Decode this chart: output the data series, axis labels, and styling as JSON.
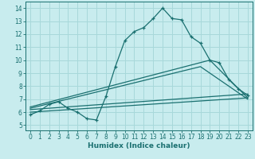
{
  "xlabel": "Humidex (Indice chaleur)",
  "ylabel": "",
  "bg_color": "#c8ecee",
  "grid_color": "#a8d8da",
  "line_color": "#1a7070",
  "xlim": [
    -0.5,
    23.5
  ],
  "ylim": [
    4.6,
    14.5
  ],
  "xticks": [
    0,
    1,
    2,
    3,
    4,
    5,
    6,
    7,
    8,
    9,
    10,
    11,
    12,
    13,
    14,
    15,
    16,
    17,
    18,
    19,
    20,
    21,
    22,
    23
  ],
  "yticks": [
    5,
    6,
    7,
    8,
    9,
    10,
    11,
    12,
    13,
    14
  ],
  "line1_x": [
    0,
    1,
    2,
    3,
    4,
    5,
    6,
    7,
    8,
    9,
    10,
    11,
    12,
    13,
    14,
    15,
    16,
    17,
    18,
    19,
    20,
    21,
    22,
    23
  ],
  "line1_y": [
    5.8,
    6.1,
    6.6,
    6.8,
    6.3,
    6.0,
    5.5,
    5.4,
    7.2,
    9.5,
    11.5,
    12.2,
    12.5,
    13.2,
    14.0,
    13.2,
    13.1,
    11.8,
    11.3,
    10.0,
    9.8,
    8.5,
    7.8,
    7.3
  ],
  "line2_x": [
    0,
    23
  ],
  "line2_y": [
    6.0,
    7.1
  ],
  "line3_x": [
    0,
    23
  ],
  "line3_y": [
    6.2,
    7.4
  ],
  "line4_x": [
    0,
    18,
    23
  ],
  "line4_y": [
    6.3,
    9.5,
    7.0
  ],
  "line5_x": [
    0,
    19,
    23
  ],
  "line5_y": [
    6.4,
    10.0,
    7.1
  ]
}
